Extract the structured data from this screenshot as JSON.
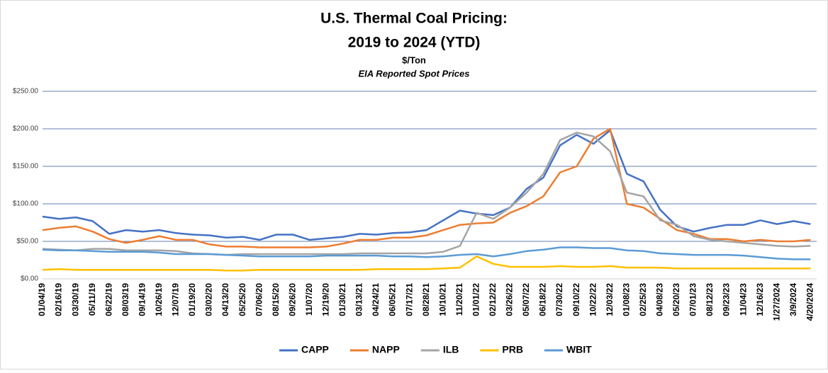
{
  "chart_data": {
    "type": "line",
    "title": [
      "U.S. Thermal Coal Pricing:",
      "2019 to 2024 (YTD)"
    ],
    "subtitle": "$/Ton",
    "note": "EIA Reported Spot Prices",
    "categories": [
      "01/04/19",
      "02/16/19",
      "03/30/19",
      "05/11/19",
      "06/22/19",
      "08/03/19",
      "09/14/19",
      "10/26/19",
      "12/07/19",
      "01/19/20",
      "03/02/20",
      "04/13/20",
      "05/25/20",
      "07/06/20",
      "08/15/20",
      "09/26/20",
      "11/07/20",
      "12/19/20",
      "01/30/21",
      "03/13/21",
      "04/24/21",
      "06/05/21",
      "07/17/21",
      "08/28/21",
      "10/10/21",
      "11/20/21",
      "01/01/22",
      "02/12/22",
      "03/26/22",
      "05/07/22",
      "06/18/22",
      "07/30/22",
      "09/10/22",
      "10/22/22",
      "12/03/22",
      "01/08/23",
      "02/25/23",
      "04/08/23",
      "05/20/23",
      "07/01/23",
      "08/12/23",
      "09/23/23",
      "11/04/23",
      "12/16/23",
      "1/27/2024",
      "3/9/2024",
      "4/20/2024"
    ],
    "series": [
      {
        "name": "CAPP",
        "color": "#4472c4",
        "values": [
          83,
          80,
          82,
          77,
          60,
          65,
          63,
          65,
          61,
          59,
          58,
          55,
          56,
          52,
          59,
          59,
          52,
          54,
          56,
          60,
          59,
          61,
          62,
          65,
          78,
          91,
          87,
          85,
          95,
          120,
          135,
          178,
          192,
          180,
          198,
          140,
          130,
          92,
          70,
          63,
          68,
          72,
          72,
          78,
          73,
          77,
          73
        ]
      },
      {
        "name": "NAPP",
        "color": "#ed7d31",
        "values": [
          65,
          68,
          70,
          63,
          53,
          48,
          52,
          57,
          52,
          52,
          46,
          43,
          43,
          42,
          42,
          42,
          42,
          43,
          47,
          52,
          52,
          55,
          55,
          58,
          65,
          72,
          74,
          75,
          88,
          97,
          110,
          142,
          150,
          187,
          200,
          100,
          95,
          80,
          65,
          60,
          53,
          53,
          50,
          52,
          50,
          50,
          52
        ]
      },
      {
        "name": "ILB",
        "color": "#a5a5a5",
        "values": [
          40,
          39,
          38,
          40,
          40,
          38,
          38,
          38,
          37,
          34,
          33,
          32,
          33,
          33,
          33,
          33,
          33,
          33,
          33,
          34,
          34,
          34,
          34,
          34,
          36,
          44,
          88,
          80,
          95,
          115,
          140,
          185,
          195,
          190,
          170,
          115,
          110,
          78,
          72,
          57,
          52,
          50,
          48,
          46,
          44,
          43,
          44
        ]
      },
      {
        "name": "PRB",
        "color": "#ffc000",
        "values": [
          12,
          13,
          12,
          12,
          12,
          12,
          12,
          12,
          12,
          12,
          12,
          11,
          11,
          12,
          12,
          12,
          12,
          12,
          12,
          12,
          13,
          13,
          13,
          13,
          14,
          15,
          30,
          20,
          16,
          16,
          16,
          17,
          16,
          16,
          17,
          15,
          15,
          15,
          14,
          14,
          14,
          14,
          14,
          14,
          14,
          14,
          14
        ]
      },
      {
        "name": "WBIT",
        "color": "#5b9bd5",
        "values": [
          39,
          38,
          38,
          37,
          36,
          36,
          36,
          35,
          33,
          33,
          33,
          32,
          31,
          30,
          30,
          30,
          30,
          31,
          31,
          31,
          31,
          30,
          30,
          29,
          30,
          32,
          33,
          30,
          33,
          37,
          39,
          42,
          42,
          41,
          41,
          38,
          37,
          34,
          33,
          32,
          32,
          32,
          31,
          29,
          27,
          26,
          26
        ]
      }
    ],
    "ylim": [
      0,
      250
    ],
    "yticks": [
      {
        "value": 0,
        "label": "$0.00"
      },
      {
        "value": 50,
        "label": "$50.00"
      },
      {
        "value": 100,
        "label": "$100.00"
      },
      {
        "value": 150,
        "label": "$150.00"
      },
      {
        "value": 200,
        "label": "$200.00"
      },
      {
        "value": 250,
        "label": "$250.00"
      }
    ],
    "grid": true,
    "legend": "bottom"
  }
}
